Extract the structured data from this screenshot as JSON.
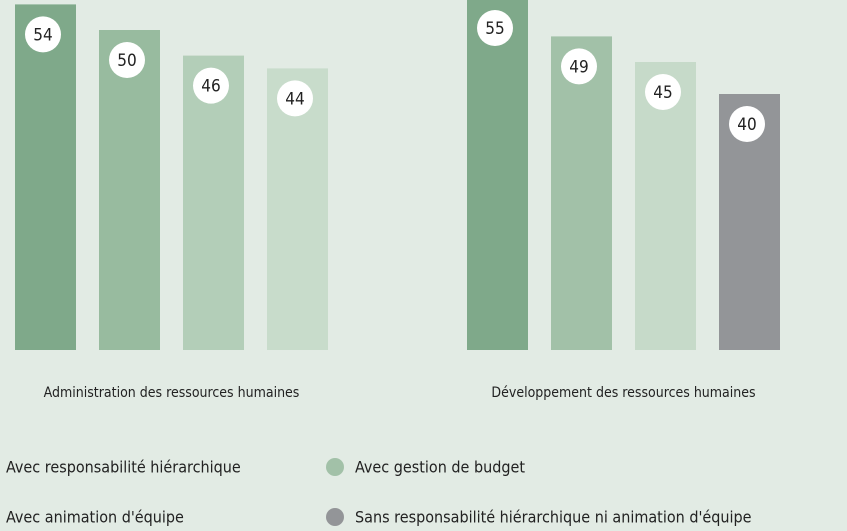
{
  "chart_data": {
    "type": "bar",
    "categories": [
      "Administration des ressources humaines",
      "Développement des ressources humaines"
    ],
    "series": [
      {
        "name": "Avec responsabilité hiérarchique",
        "color": "#7fa98a",
        "colors": [
          "#7fa98a",
          "#7fa98a"
        ],
        "values": [
          54,
          55
        ]
      },
      {
        "name": "Avec gestion de budget",
        "color": "#a2c1a8",
        "colors": [
          "#98bb9f",
          "#a2c1a8"
        ],
        "values": [
          50,
          49
        ]
      },
      {
        "name": "Avec animation d'équipe",
        "color": "#c6dac9",
        "colors": [
          "#b3ceb8",
          "#c6dac9"
        ],
        "values": [
          46,
          45
        ]
      },
      {
        "name": "Sans responsabilité hiérarchique ni animation d'équipe",
        "color": "#939598",
        "colors": [
          "#c8dccb",
          "#939598"
        ],
        "values": [
          44,
          40
        ]
      }
    ]
  }
}
